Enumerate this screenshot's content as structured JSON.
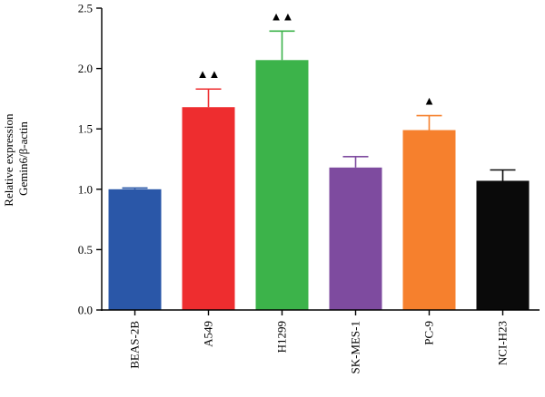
{
  "chart_data": {
    "type": "bar",
    "categories": [
      "BEAS-2B",
      "A549",
      "H1299",
      "SK-MES-1",
      "PC-9",
      "NCI-H23"
    ],
    "values": [
      1.0,
      1.68,
      2.07,
      1.18,
      1.49,
      1.07
    ],
    "errors": [
      0.01,
      0.15,
      0.24,
      0.09,
      0.12,
      0.09
    ],
    "colors": [
      "#2a57a8",
      "#ee2d2f",
      "#3cb34a",
      "#7e4b9f",
      "#f6802d",
      "#0a0a0a"
    ],
    "markers": [
      "",
      "▲▲",
      "▲▲",
      "",
      "▲",
      ""
    ],
    "ylabel_line1": "Relative expression",
    "ylabel_line2": "Gemin6/β-actin",
    "xlabel": "",
    "title": "",
    "ylim": [
      0,
      2.5
    ],
    "yticks": [
      0.0,
      0.5,
      1.0,
      1.5,
      2.0,
      2.5
    ],
    "ytick_labels": [
      "0.0",
      "0.5",
      "1.0",
      "1.5",
      "2.0",
      "2.5"
    ],
    "grid": false,
    "legend": "none"
  }
}
